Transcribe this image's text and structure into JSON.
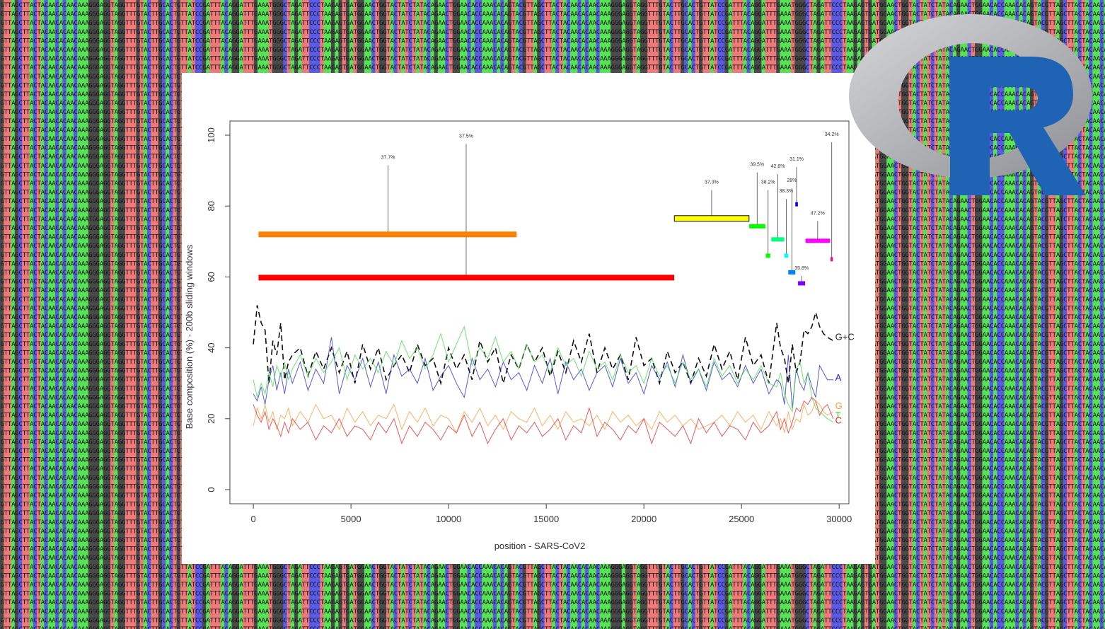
{
  "background": {
    "sequence_rows": [
      "GTTAGCTTACTACAACACAACAAAGGGAGGTAGGTTTGTACTTGCACTGTTATCCGATTTACAGGATTTGAAATGGGCTAGATTCCCTAAGAGTGATGGAACTGGTACTATCTATACAGAACTGGAACACCAAACACAGTAC",
      "GTTATCTTACTACAACACAACAAATGGAGGTAGGTTTGTACTTGCACTGTTATCCGATTTACAGGATTTGAAATGGGCTAGATTCCCTAAGAGTGATGGAACTGGTACTATCTATACAGAACTGGAACACCAAACACAGTAC"
    ],
    "mutated_row_index": 24,
    "base_colors": {
      "A": "#56e356",
      "C": "#5b5be6",
      "G": "#4a4a4a",
      "T": "#ef7a7a"
    }
  },
  "logo": {
    "letter": "R",
    "ring_color": "#a8a9ae",
    "letter_color": "#1f64b4"
  },
  "chart_data": {
    "type": "line",
    "xlabel": "position - SARS-CoV2",
    "ylabel": "Base composition (%) - 200b sliding windows",
    "xlim": [
      -1200,
      30500
    ],
    "ylim": [
      -4,
      104
    ],
    "xticks": [
      0,
      5000,
      10000,
      15000,
      20000,
      25000,
      30000
    ],
    "xtick_labels": [
      "0",
      "5000",
      "10000",
      "15000",
      "20000",
      "25000",
      "30000"
    ],
    "yticks": [
      0,
      20,
      40,
      60,
      80,
      100
    ],
    "ytick_labels": [
      "0",
      "20",
      "40",
      "60",
      "80",
      "100"
    ],
    "grid": false,
    "series": [
      {
        "name": "G+C",
        "color": "#111111",
        "dash": "8,5",
        "width": 1.6,
        "x": [
          0,
          200,
          400,
          600,
          800,
          1000,
          1200,
          1400,
          1600,
          1800,
          2000,
          2400,
          2800,
          3200,
          3600,
          4000,
          4400,
          4800,
          5200,
          5600,
          6000,
          6400,
          6800,
          7200,
          7600,
          8000,
          8400,
          8800,
          9200,
          9600,
          10000,
          10400,
          10800,
          11200,
          11600,
          12000,
          12400,
          12800,
          13200,
          13600,
          14000,
          14400,
          14800,
          15200,
          15600,
          16000,
          16400,
          16800,
          17200,
          17600,
          18000,
          18400,
          18800,
          19200,
          19600,
          20000,
          20400,
          20800,
          21200,
          21600,
          22000,
          22400,
          22800,
          23200,
          23600,
          24000,
          24400,
          24800,
          25200,
          25600,
          26000,
          26400,
          26800,
          27000,
          27200,
          27400,
          27600,
          27800,
          28000,
          28200,
          28400,
          28600,
          28800,
          29000,
          29200,
          29400,
          29700
        ],
        "y": [
          41,
          52,
          47,
          45,
          30,
          42,
          38,
          47,
          31,
          36,
          38,
          40,
          32,
          39,
          34,
          40,
          33,
          39,
          30,
          41,
          34,
          40,
          31,
          35,
          38,
          33,
          41,
          35,
          37,
          30,
          40,
          34,
          38,
          31,
          42,
          36,
          40,
          30,
          38,
          34,
          41,
          36,
          40,
          32,
          39,
          33,
          42,
          36,
          44,
          33,
          40,
          34,
          38,
          31,
          43,
          35,
          37,
          30,
          39,
          33,
          36,
          30,
          37,
          32,
          41,
          34,
          39,
          31,
          43,
          35,
          38,
          30,
          47,
          40,
          37,
          30,
          41,
          33,
          36,
          45,
          44,
          46,
          50,
          46,
          44,
          43,
          42
        ]
      },
      {
        "name": "A",
        "color": "#2222dd",
        "dash": "",
        "width": 1,
        "x": [
          0,
          200,
          400,
          600,
          800,
          1000,
          1200,
          1400,
          1600,
          1800,
          2000,
          2400,
          2800,
          3200,
          3600,
          4000,
          4400,
          4800,
          5200,
          5600,
          6000,
          6400,
          6800,
          7200,
          7600,
          8000,
          8400,
          8800,
          9200,
          9600,
          10000,
          10400,
          10800,
          11200,
          11600,
          12000,
          12400,
          12800,
          13200,
          13600,
          14000,
          14400,
          14800,
          15200,
          15600,
          16000,
          16400,
          16800,
          17200,
          17600,
          18000,
          18400,
          18800,
          19200,
          19600,
          20000,
          20400,
          20800,
          21200,
          21600,
          22000,
          22400,
          22800,
          23200,
          23600,
          24000,
          24400,
          24800,
          25200,
          25600,
          26000,
          26400,
          26800,
          27000,
          27200,
          27400,
          27600,
          27800,
          28000,
          28200,
          28400,
          28600,
          28800,
          29000,
          29200,
          29400,
          29700
        ],
        "y": [
          27,
          25,
          29,
          24,
          31,
          35,
          28,
          33,
          27,
          34,
          30,
          36,
          28,
          34,
          30,
          43,
          27,
          35,
          31,
          37,
          29,
          36,
          27,
          38,
          32,
          34,
          30,
          37,
          28,
          32,
          35,
          30,
          26,
          37,
          31,
          34,
          29,
          36,
          31,
          33,
          28,
          35,
          30,
          37,
          27,
          36,
          31,
          34,
          28,
          33,
          35,
          29,
          37,
          30,
          33,
          27,
          35,
          31,
          36,
          29,
          38,
          30,
          34,
          28,
          36,
          31,
          33,
          29,
          35,
          30,
          34,
          27,
          31,
          30,
          24,
          38,
          23,
          34,
          30,
          28,
          33,
          29,
          26,
          35,
          33,
          31,
          31
        ]
      },
      {
        "name": "T",
        "color": "#3fdc3f",
        "dash": "",
        "width": 1,
        "x": [
          0,
          200,
          400,
          600,
          800,
          1000,
          1200,
          1400,
          1600,
          1800,
          2000,
          2400,
          2800,
          3200,
          3600,
          4000,
          4400,
          4800,
          5200,
          5600,
          6000,
          6400,
          6800,
          7200,
          7600,
          8000,
          8400,
          8800,
          9200,
          9600,
          10000,
          10400,
          10800,
          11200,
          11600,
          12000,
          12400,
          12800,
          13200,
          13600,
          14000,
          14400,
          14800,
          15200,
          15600,
          16000,
          16400,
          16800,
          17200,
          17600,
          18000,
          18400,
          18800,
          19200,
          19600,
          20000,
          20400,
          20800,
          21200,
          21600,
          22000,
          22400,
          22800,
          23200,
          23600,
          24000,
          24400,
          24800,
          25200,
          25600,
          26000,
          26400,
          26800,
          27000,
          27200,
          27400,
          27600,
          27800,
          28000,
          28200,
          28400,
          28600,
          28800,
          29000,
          29200,
          29400,
          29700
        ],
        "y": [
          31,
          26,
          30,
          27,
          33,
          29,
          35,
          32,
          36,
          31,
          34,
          38,
          32,
          37,
          33,
          36,
          40,
          31,
          38,
          34,
          37,
          33,
          39,
          35,
          42,
          37,
          40,
          34,
          38,
          44,
          36,
          41,
          46,
          35,
          40,
          37,
          43,
          36,
          39,
          34,
          41,
          36,
          38,
          33,
          40,
          35,
          37,
          32,
          39,
          34,
          36,
          31,
          38,
          33,
          35,
          30,
          37,
          32,
          35,
          30,
          36,
          31,
          34,
          29,
          37,
          32,
          35,
          30,
          34,
          31,
          35,
          30,
          29,
          33,
          27,
          24,
          22,
          34,
          36,
          30,
          33,
          26,
          23,
          22,
          21,
          20,
          19
        ]
      },
      {
        "name": "G",
        "color": "#ff9933",
        "dash": "",
        "width": 1,
        "x": [
          0,
          200,
          400,
          600,
          800,
          1000,
          1200,
          1400,
          1600,
          1800,
          2000,
          2400,
          2800,
          3200,
          3600,
          4000,
          4400,
          4800,
          5200,
          5600,
          6000,
          6400,
          6800,
          7200,
          7600,
          8000,
          8400,
          8800,
          9200,
          9600,
          10000,
          10400,
          10800,
          11200,
          11600,
          12000,
          12400,
          12800,
          13200,
          13600,
          14000,
          14400,
          14800,
          15200,
          15600,
          16000,
          16400,
          16800,
          17200,
          17600,
          18000,
          18400,
          18800,
          19200,
          19600,
          20000,
          20400,
          20800,
          21200,
          21600,
          22000,
          22400,
          22800,
          23200,
          23600,
          24000,
          24400,
          24800,
          25200,
          25600,
          26000,
          26400,
          26800,
          27000,
          27200,
          27400,
          27600,
          27800,
          28000,
          28200,
          28400,
          28600,
          28800,
          29000,
          29200,
          29400,
          29700
        ],
        "y": [
          18,
          23,
          20,
          24,
          19,
          22,
          17,
          21,
          20,
          23,
          18,
          22,
          19,
          24,
          20,
          21,
          17,
          23,
          19,
          22,
          18,
          21,
          20,
          24,
          17,
          22,
          19,
          23,
          18,
          21,
          20,
          16,
          22,
          19,
          23,
          18,
          21,
          17,
          22,
          20,
          19,
          23,
          18,
          21,
          17,
          22,
          19,
          20,
          18,
          21,
          17,
          22,
          19,
          21,
          18,
          20,
          17,
          22,
          19,
          21,
          18,
          20,
          17,
          18,
          19,
          21,
          18,
          22,
          19,
          21,
          17,
          22,
          18,
          20,
          16,
          22,
          17,
          20,
          19,
          24,
          21,
          22,
          25,
          24,
          22,
          21,
          22
        ]
      },
      {
        "name": "C",
        "color": "#ee2222",
        "dash": "",
        "width": 1,
        "x": [
          0,
          200,
          400,
          600,
          800,
          1000,
          1200,
          1400,
          1600,
          1800,
          2000,
          2400,
          2800,
          3200,
          3600,
          4000,
          4400,
          4800,
          5200,
          5600,
          6000,
          6400,
          6800,
          7200,
          7600,
          8000,
          8400,
          8800,
          9200,
          9600,
          10000,
          10400,
          10800,
          11200,
          11600,
          12000,
          12400,
          12800,
          13200,
          13600,
          14000,
          14400,
          14800,
          15200,
          15600,
          16000,
          16400,
          16800,
          17200,
          17600,
          18000,
          18400,
          18800,
          19200,
          19600,
          20000,
          20400,
          20800,
          21200,
          21600,
          22000,
          22400,
          22800,
          23200,
          23600,
          24000,
          24400,
          24800,
          25200,
          25600,
          26000,
          26400,
          26800,
          27000,
          27200,
          27400,
          27600,
          27800,
          28000,
          28200,
          28400,
          28600,
          28800,
          29000,
          29200,
          29400,
          29700
        ],
        "y": [
          24,
          21,
          19,
          22,
          17,
          20,
          18,
          15,
          19,
          16,
          20,
          17,
          19,
          14,
          18,
          16,
          20,
          15,
          18,
          17,
          14,
          19,
          16,
          20,
          13,
          18,
          15,
          19,
          17,
          14,
          18,
          16,
          21,
          15,
          19,
          13,
          17,
          20,
          14,
          18,
          16,
          19,
          15,
          17,
          20,
          14,
          18,
          16,
          23,
          15,
          19,
          17,
          14,
          18,
          16,
          20,
          13,
          19,
          17,
          15,
          18,
          13,
          20,
          16,
          19,
          15,
          18,
          17,
          14,
          19,
          16,
          18,
          22,
          17,
          20,
          16,
          19,
          23,
          22,
          25,
          24,
          26,
          25,
          21,
          23,
          24,
          20
        ]
      }
    ],
    "series_labels": [
      {
        "text": "G+C",
        "x": 29800,
        "y": 43,
        "color": "#222222"
      },
      {
        "text": "A",
        "x": 29800,
        "y": 31.5,
        "color": "#2222dd"
      },
      {
        "text": "G",
        "x": 29800,
        "y": 23.5,
        "color": "#ff9933"
      },
      {
        "text": "T",
        "x": 29800,
        "y": 21,
        "color": "#3fdc3f"
      },
      {
        "text": "C",
        "x": 29800,
        "y": 19.5,
        "color": "#ee2222"
      }
    ],
    "genes": [
      {
        "x0": 266,
        "x1": 21555,
        "y": 59.8,
        "color": "#ff0000",
        "h": 8
      },
      {
        "x0": 266,
        "x1": 13483,
        "y": 72,
        "color": "#ff7f00",
        "h": 8
      },
      {
        "x0": 21563,
        "x1": 25384,
        "y": 76.5,
        "color": "#ffff00",
        "h": 8,
        "outline": "#333333"
      },
      {
        "x0": 25393,
        "x1": 26220,
        "y": 74.3,
        "color": "#00ff00",
        "h": 6
      },
      {
        "x0": 26245,
        "x1": 26472,
        "y": 66,
        "color": "#00ff00",
        "h": 6
      },
      {
        "x0": 26523,
        "x1": 27191,
        "y": 70.6,
        "color": "#00ff7f",
        "h": 6
      },
      {
        "x0": 27202,
        "x1": 27387,
        "y": 66,
        "color": "#00ffff",
        "h": 6
      },
      {
        "x0": 27394,
        "x1": 27759,
        "y": 61.3,
        "color": "#007fff",
        "h": 6
      },
      {
        "x0": 27756,
        "x1": 27887,
        "y": 80.5,
        "color": "#0000ff",
        "h": 6
      },
      {
        "x0": 27894,
        "x1": 28259,
        "y": 58.2,
        "color": "#7f00ff",
        "h": 6
      },
      {
        "x0": 28274,
        "x1": 29533,
        "y": 70.2,
        "color": "#ff00ff",
        "h": 6
      },
      {
        "x0": 29558,
        "x1": 29674,
        "y": 65,
        "color": "#ff007f",
        "h": 6
      }
    ],
    "annotations": [
      {
        "text": "37.7%",
        "x": 6900,
        "y_top": 91.5,
        "y_base": 72
      },
      {
        "text": "37.5%",
        "x": 10900,
        "y_top": 97.5,
        "y_base": 60
      },
      {
        "text": "37.3%",
        "x": 23470,
        "y_top": 84.5,
        "y_base": 76.5
      },
      {
        "text": "39.5%",
        "x": 25800,
        "y_top": 89.5,
        "y_base": 74.3
      },
      {
        "text": "38.2%",
        "x": 26360,
        "y_top": 84.5,
        "y_base": 66
      },
      {
        "text": "42.6%",
        "x": 26860,
        "y_top": 89,
        "y_base": 70.6
      },
      {
        "text": "38.3%",
        "x": 27290,
        "y_top": 82,
        "y_base": 66
      },
      {
        "text": "28%",
        "x": 27580,
        "y_top": 85,
        "y_base": 61.3
      },
      {
        "text": "31.1%",
        "x": 27820,
        "y_top": 91,
        "y_base": 80.5
      },
      {
        "text": "35.8%",
        "x": 28080,
        "y_top": 60.3,
        "y_base": 58.2
      },
      {
        "text": "47.2%",
        "x": 28900,
        "y_top": 75.8,
        "y_base": 70.2
      },
      {
        "text": "34.2%",
        "x": 29620,
        "y_top": 98,
        "y_base": 65
      }
    ]
  }
}
